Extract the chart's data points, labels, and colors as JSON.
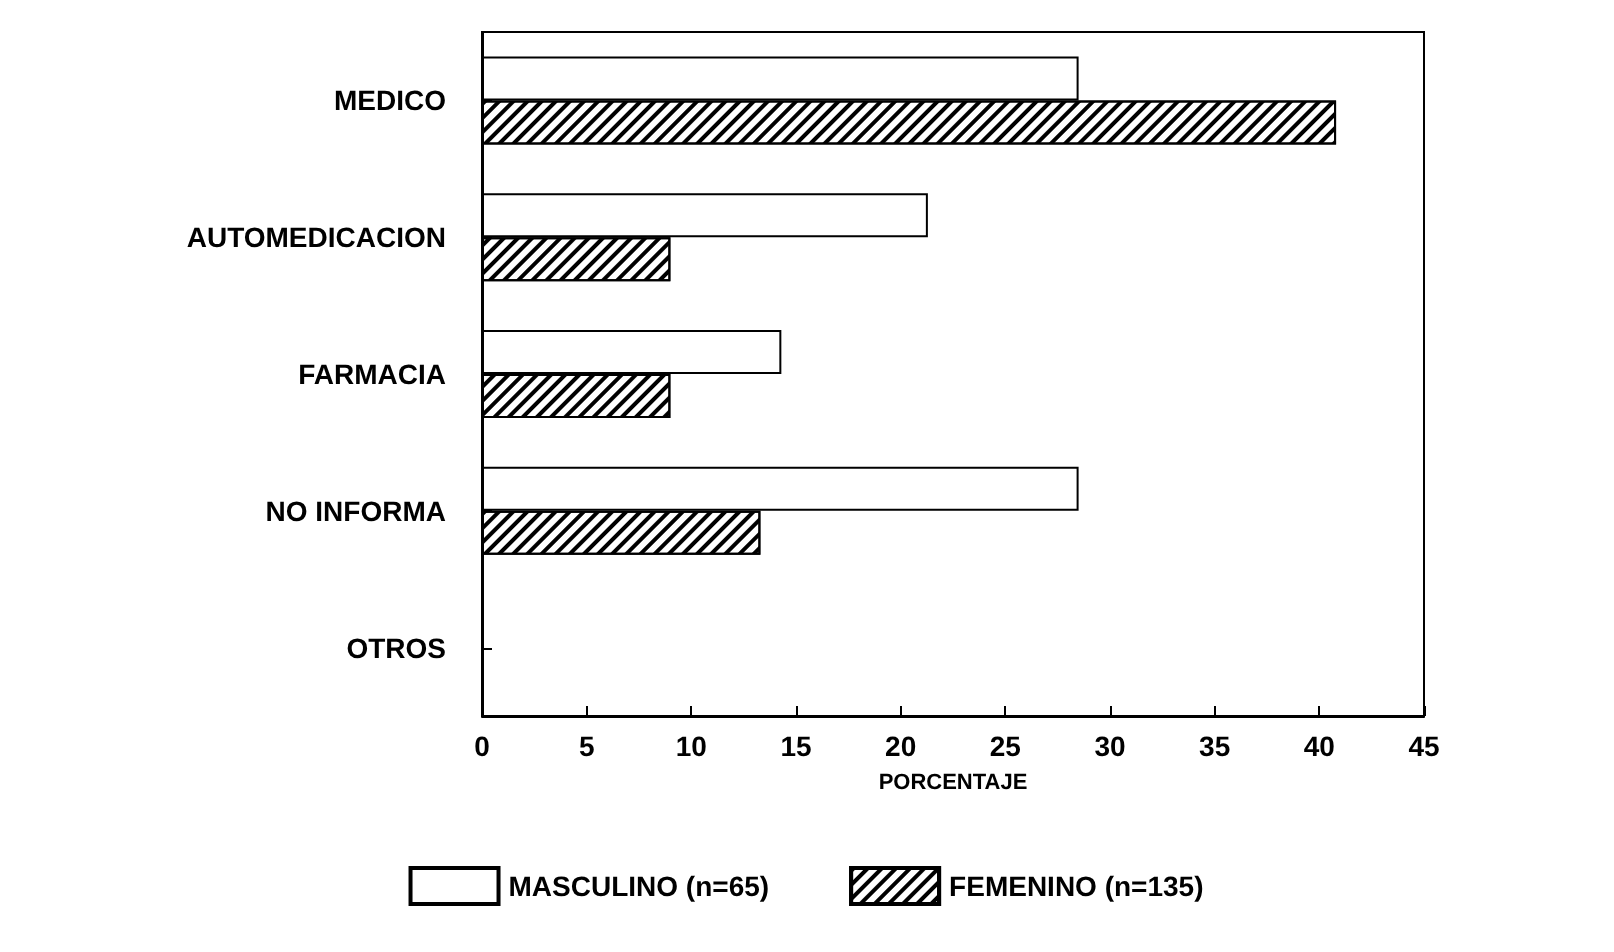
{
  "chart_data": {
    "type": "bar",
    "orientation": "horizontal",
    "xlabel": "PORCENTAJE",
    "categories": [
      "MEDICO",
      "AUTOMEDICACION",
      "FARMACIA",
      "NO INFORMA",
      "OTROS"
    ],
    "series": [
      {
        "name": "MASCULINO (n=65)",
        "color": "#ffffff",
        "values": [
          28.5,
          21.3,
          14.3,
          28.5,
          0
        ]
      },
      {
        "name": "FEMENINO (n=135)",
        "color": "#000000",
        "values": [
          40.8,
          9,
          9,
          13.3,
          0
        ]
      }
    ],
    "xlim": [
      0,
      45
    ],
    "xticks": [
      0,
      5,
      10,
      15,
      20,
      25,
      30,
      35,
      40,
      45
    ],
    "grid": false,
    "legend": "bottom"
  }
}
